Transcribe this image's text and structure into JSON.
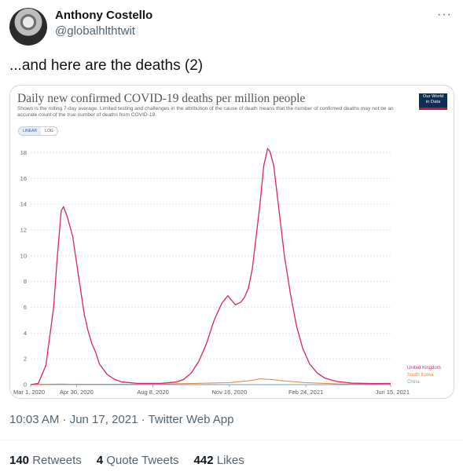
{
  "tweet": {
    "author_name": "Anthony Costello",
    "author_handle": "@globalhlthtwit",
    "more_icon": "···",
    "text": "...and here are the deaths (2)",
    "timestamp_line": "10:03 AM · Jun 17, 2021 · Twitter Web App"
  },
  "stats": [
    {
      "count": "140",
      "label": "Retweets"
    },
    {
      "count": "4",
      "label": "Quote Tweets"
    },
    {
      "count": "442",
      "label": "Likes"
    }
  ],
  "owid_logo": [
    "Our World",
    "in Data"
  ],
  "scale_toggle": {
    "linear": "LINEAR",
    "log": "LOG",
    "active": "LINEAR"
  },
  "colors": {
    "uk": "#d6246e",
    "korea": "#d8843a",
    "china": "#7a9cc9"
  },
  "chart_data": {
    "type": "line",
    "title": "Daily new confirmed COVID-19 deaths per million people",
    "subtitle": "Shown is the rolling 7-day average. Limited testing and challenges in the attribution of the cause of death means that the number of confirmed deaths may not be an accurate count of the true number of deaths from COVID-19.",
    "x_tick_labels": [
      "Mar 1, 2020",
      "Apr 30, 2020",
      "Aug 8, 2020",
      "Nov 16, 2020",
      "Feb 24, 2021",
      "Jun 15, 2021"
    ],
    "x_tick_days": [
      0,
      60,
      160,
      260,
      360,
      471
    ],
    "y_ticks": [
      0,
      2,
      4,
      6,
      8,
      10,
      12,
      14,
      16,
      18
    ],
    "ylim": [
      0,
      19
    ],
    "grid": true,
    "legend_placement": "right-end",
    "series": [
      {
        "name": "United Kingdom",
        "points": [
          [
            0,
            0
          ],
          [
            10,
            0.1
          ],
          [
            20,
            1.5
          ],
          [
            30,
            6
          ],
          [
            35,
            10
          ],
          [
            40,
            13.5
          ],
          [
            43,
            13.8
          ],
          [
            48,
            13
          ],
          [
            55,
            11.5
          ],
          [
            60,
            9.5
          ],
          [
            65,
            7.5
          ],
          [
            70,
            5.5
          ],
          [
            75,
            4.2
          ],
          [
            80,
            3.2
          ],
          [
            85,
            2.5
          ],
          [
            90,
            1.6
          ],
          [
            100,
            0.8
          ],
          [
            110,
            0.4
          ],
          [
            120,
            0.2
          ],
          [
            140,
            0.1
          ],
          [
            170,
            0.1
          ],
          [
            190,
            0.2
          ],
          [
            200,
            0.4
          ],
          [
            210,
            0.9
          ],
          [
            220,
            1.8
          ],
          [
            230,
            3.2
          ],
          [
            240,
            5
          ],
          [
            250,
            6.3
          ],
          [
            258,
            6.9
          ],
          [
            262,
            6.6
          ],
          [
            268,
            6.2
          ],
          [
            275,
            6.4
          ],
          [
            280,
            6.8
          ],
          [
            285,
            7.5
          ],
          [
            290,
            9
          ],
          [
            295,
            11.5
          ],
          [
            300,
            14
          ],
          [
            305,
            17
          ],
          [
            310,
            18.3
          ],
          [
            313,
            18.1
          ],
          [
            318,
            17
          ],
          [
            325,
            13.5
          ],
          [
            332,
            10
          ],
          [
            340,
            7
          ],
          [
            348,
            4.5
          ],
          [
            356,
            2.8
          ],
          [
            365,
            1.6
          ],
          [
            375,
            0.9
          ],
          [
            385,
            0.5
          ],
          [
            400,
            0.25
          ],
          [
            420,
            0.12
          ],
          [
            450,
            0.08
          ],
          [
            471,
            0.1
          ]
        ]
      },
      {
        "name": "South Korea",
        "points": [
          [
            0,
            0
          ],
          [
            60,
            0.03
          ],
          [
            160,
            0.03
          ],
          [
            260,
            0.15
          ],
          [
            285,
            0.3
          ],
          [
            300,
            0.45
          ],
          [
            315,
            0.4
          ],
          [
            330,
            0.3
          ],
          [
            360,
            0.15
          ],
          [
            400,
            0.06
          ],
          [
            471,
            0.04
          ]
        ]
      },
      {
        "name": "China",
        "points": [
          [
            0,
            0.01
          ],
          [
            40,
            0.05
          ],
          [
            60,
            0.01
          ],
          [
            471,
            0
          ]
        ]
      }
    ]
  }
}
